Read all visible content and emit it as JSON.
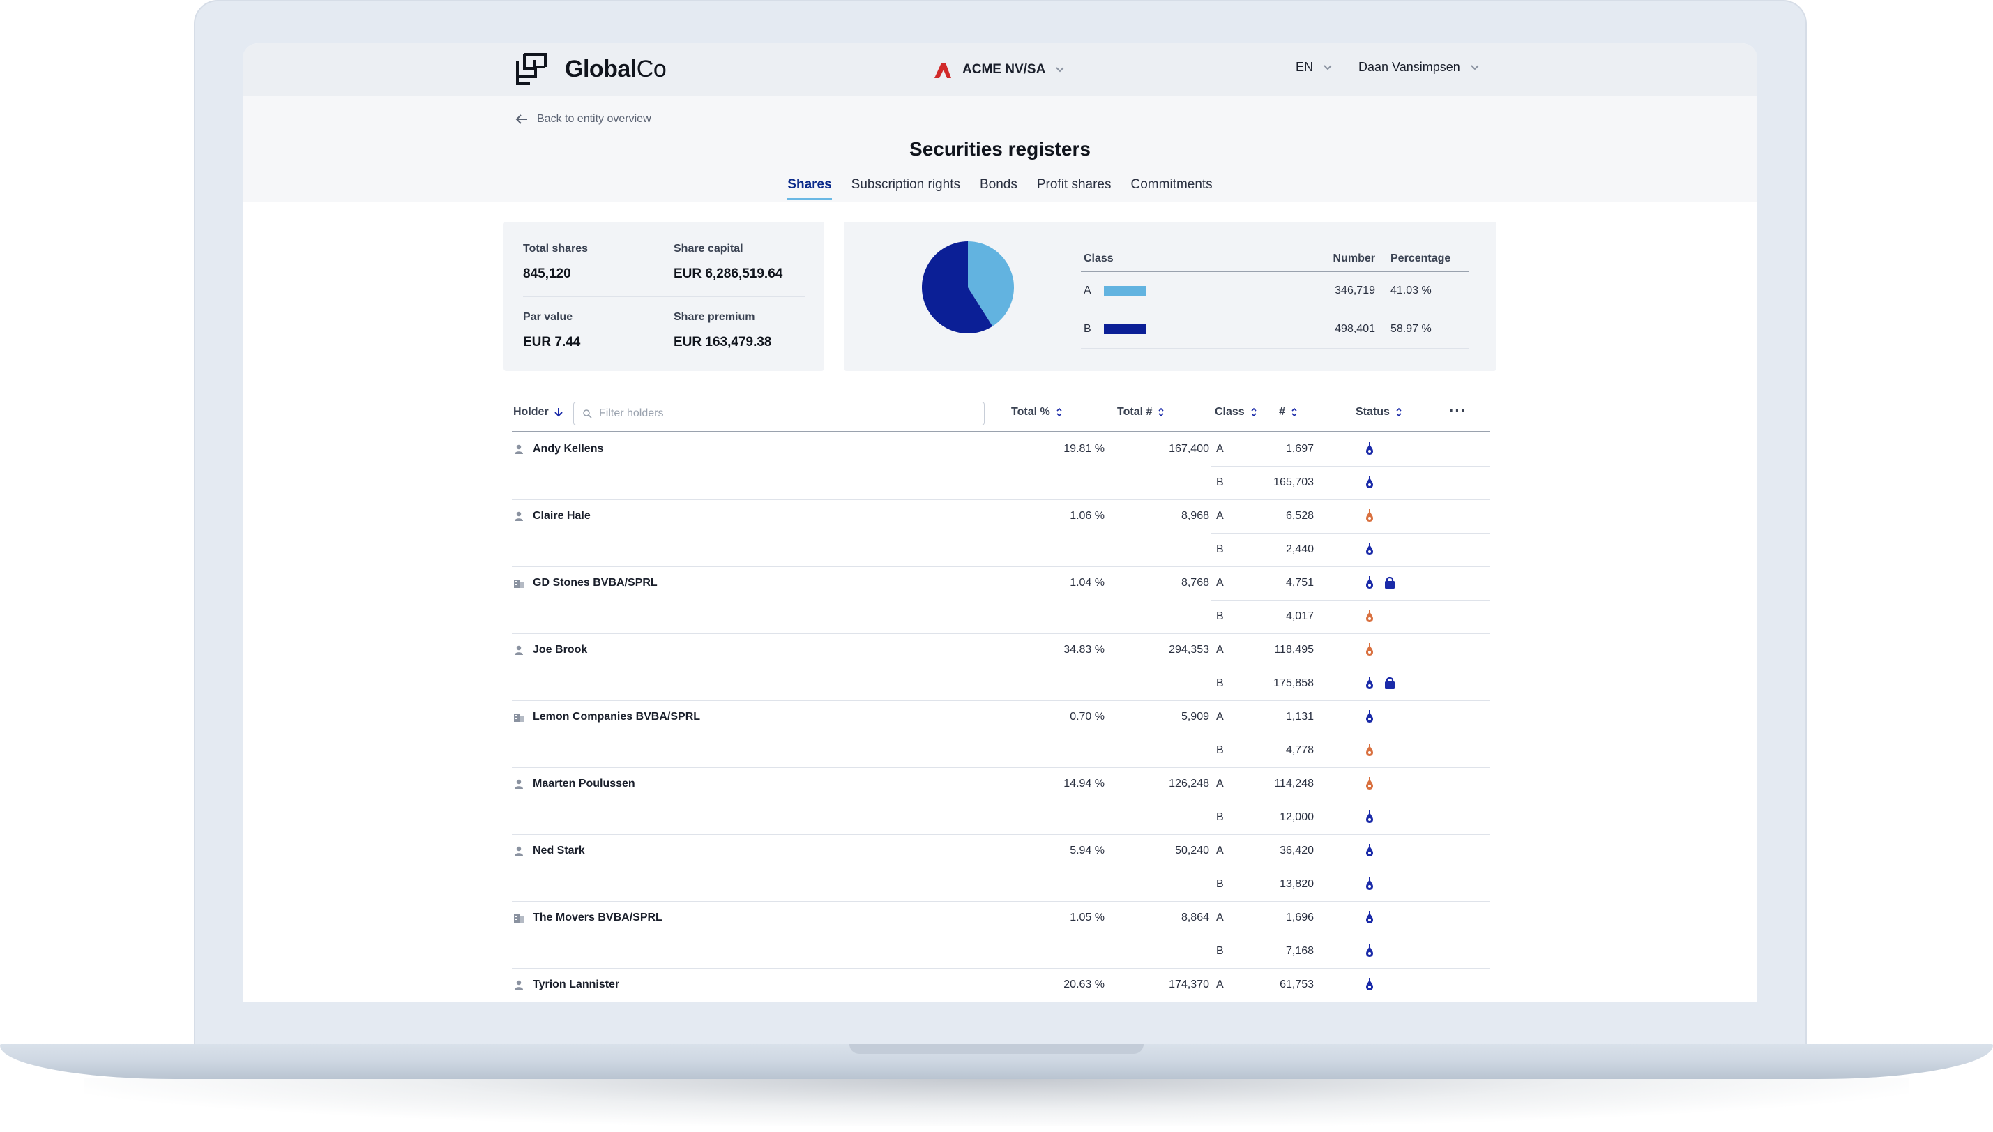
{
  "app": {
    "brand_bold": "Global",
    "brand_light": "Co",
    "entity": "ACME NV/SA",
    "language": "EN",
    "user": "Daan Vansimpsen"
  },
  "nav": {
    "back_label": "Back to entity overview",
    "page_title": "Securities registers",
    "tabs": [
      {
        "label": "Shares",
        "active": true
      },
      {
        "label": "Subscription rights",
        "active": false
      },
      {
        "label": "Bonds",
        "active": false
      },
      {
        "label": "Profit shares",
        "active": false
      },
      {
        "label": "Commitments",
        "active": false
      }
    ]
  },
  "summary": {
    "total_shares_label": "Total shares",
    "total_shares": "845,120",
    "share_capital_label": "Share capital",
    "share_capital": "EUR 6,286,519.64",
    "par_value_label": "Par value",
    "par_value": "EUR 7.44",
    "share_premium_label": "Share premium",
    "share_premium": "EUR 163,479.38"
  },
  "distribution": {
    "headers": {
      "class": "Class",
      "number": "Number",
      "percentage": "Percentage"
    },
    "rows": [
      {
        "class": "A",
        "number": "346,719",
        "percentage": "41.03 %",
        "color": "#62b3e0"
      },
      {
        "class": "B",
        "number": "498,401",
        "percentage": "58.97 %",
        "color": "#0b1f96"
      }
    ]
  },
  "chart_data": {
    "type": "pie",
    "categories": [
      "A",
      "B"
    ],
    "values": [
      41.03,
      58.97
    ],
    "colors": [
      "#62b3e0",
      "#0b1f96"
    ]
  },
  "holders_table": {
    "headers": {
      "holder": "Holder",
      "total_pct": "Total %",
      "total_num": "Total #",
      "class": "Class",
      "num": "#",
      "status": "Status"
    },
    "filter_placeholder": "Filter holders",
    "more": "···",
    "rows": [
      {
        "name": "Andy Kellens",
        "type": "person",
        "total_pct": "19.81 %",
        "total": "167,400",
        "classes": [
          {
            "class": "A",
            "num": "1,697",
            "status": [
              "blue"
            ]
          },
          {
            "class": "B",
            "num": "165,703",
            "status": [
              "blue"
            ]
          }
        ]
      },
      {
        "name": "Claire Hale",
        "type": "person",
        "total_pct": "1.06 %",
        "total": "8,968",
        "classes": [
          {
            "class": "A",
            "num": "6,528",
            "status": [
              "orange"
            ]
          },
          {
            "class": "B",
            "num": "2,440",
            "status": [
              "blue"
            ]
          }
        ]
      },
      {
        "name": "GD Stones BVBA/SPRL",
        "type": "company",
        "total_pct": "1.04 %",
        "total": "8,768",
        "classes": [
          {
            "class": "A",
            "num": "4,751",
            "status": [
              "blue",
              "lock"
            ]
          },
          {
            "class": "B",
            "num": "4,017",
            "status": [
              "orange"
            ]
          }
        ]
      },
      {
        "name": "Joe Brook",
        "type": "person",
        "total_pct": "34.83 %",
        "total": "294,353",
        "classes": [
          {
            "class": "A",
            "num": "118,495",
            "status": [
              "orange"
            ]
          },
          {
            "class": "B",
            "num": "175,858",
            "status": [
              "blue",
              "lock"
            ]
          }
        ]
      },
      {
        "name": "Lemon Companies BVBA/SPRL",
        "type": "company",
        "total_pct": "0.70 %",
        "total": "5,909",
        "classes": [
          {
            "class": "A",
            "num": "1,131",
            "status": [
              "blue"
            ]
          },
          {
            "class": "B",
            "num": "4,778",
            "status": [
              "orange"
            ]
          }
        ]
      },
      {
        "name": "Maarten Poulussen",
        "type": "person",
        "total_pct": "14.94 %",
        "total": "126,248",
        "classes": [
          {
            "class": "A",
            "num": "114,248",
            "status": [
              "orange"
            ]
          },
          {
            "class": "B",
            "num": "12,000",
            "status": [
              "blue"
            ]
          }
        ]
      },
      {
        "name": "Ned Stark",
        "type": "person",
        "total_pct": "5.94 %",
        "total": "50,240",
        "classes": [
          {
            "class": "A",
            "num": "36,420",
            "status": [
              "blue"
            ]
          },
          {
            "class": "B",
            "num": "13,820",
            "status": [
              "blue"
            ]
          }
        ]
      },
      {
        "name": "The Movers BVBA/SPRL",
        "type": "company",
        "total_pct": "1.05 %",
        "total": "8,864",
        "classes": [
          {
            "class": "A",
            "num": "1,696",
            "status": [
              "blue"
            ]
          },
          {
            "class": "B",
            "num": "7,168",
            "status": [
              "blue"
            ]
          }
        ]
      },
      {
        "name": "Tyrion Lannister",
        "type": "person",
        "total_pct": "20.63 %",
        "total": "174,370",
        "classes": [
          {
            "class": "A",
            "num": "61,753",
            "status": [
              "blue"
            ]
          }
        ]
      }
    ]
  },
  "status_colors": {
    "blue": "#1a2aa8",
    "orange": "#d9703f"
  }
}
